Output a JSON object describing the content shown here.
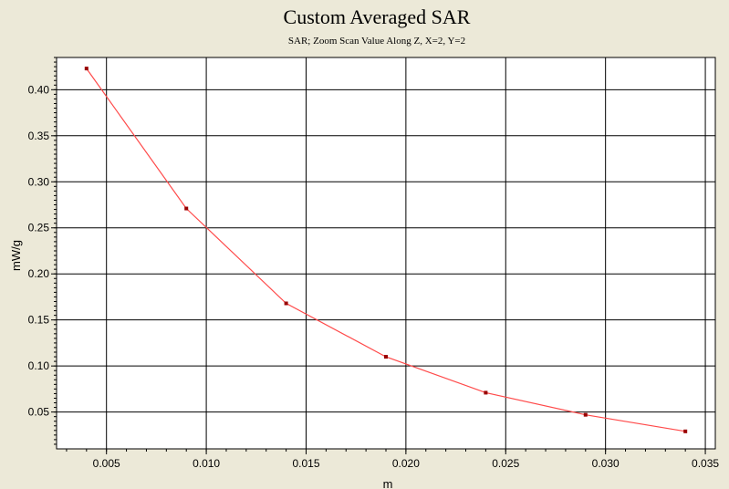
{
  "chart_data": {
    "type": "line",
    "title": "Custom Averaged SAR",
    "subtitle": "SAR; Zoom Scan Value Along Z, X=2, Y=2",
    "xlabel": "m",
    "ylabel": "mW/g",
    "xlim": [
      0.0025,
      0.0355
    ],
    "ylim": [
      0.01,
      0.435
    ],
    "x_ticks": [
      0.005,
      0.01,
      0.015,
      0.02,
      0.025,
      0.03,
      0.035
    ],
    "x_tick_labels": [
      "0.005",
      "0.010",
      "0.015",
      "0.020",
      "0.025",
      "0.030",
      "0.035"
    ],
    "y_ticks": [
      0.05,
      0.1,
      0.15,
      0.2,
      0.25,
      0.3,
      0.35,
      0.4
    ],
    "y_tick_labels": [
      "0.05",
      "0.10",
      "0.15",
      "0.20",
      "0.25",
      "0.30",
      "0.35",
      "0.40"
    ],
    "grid": true,
    "series": [
      {
        "color": "#ff4a4a",
        "marker_color": "#990000",
        "x": [
          0.004,
          0.009,
          0.014,
          0.019,
          0.024,
          0.029,
          0.034
        ],
        "y": [
          0.423,
          0.271,
          0.168,
          0.11,
          0.071,
          0.047,
          0.029
        ]
      }
    ]
  }
}
